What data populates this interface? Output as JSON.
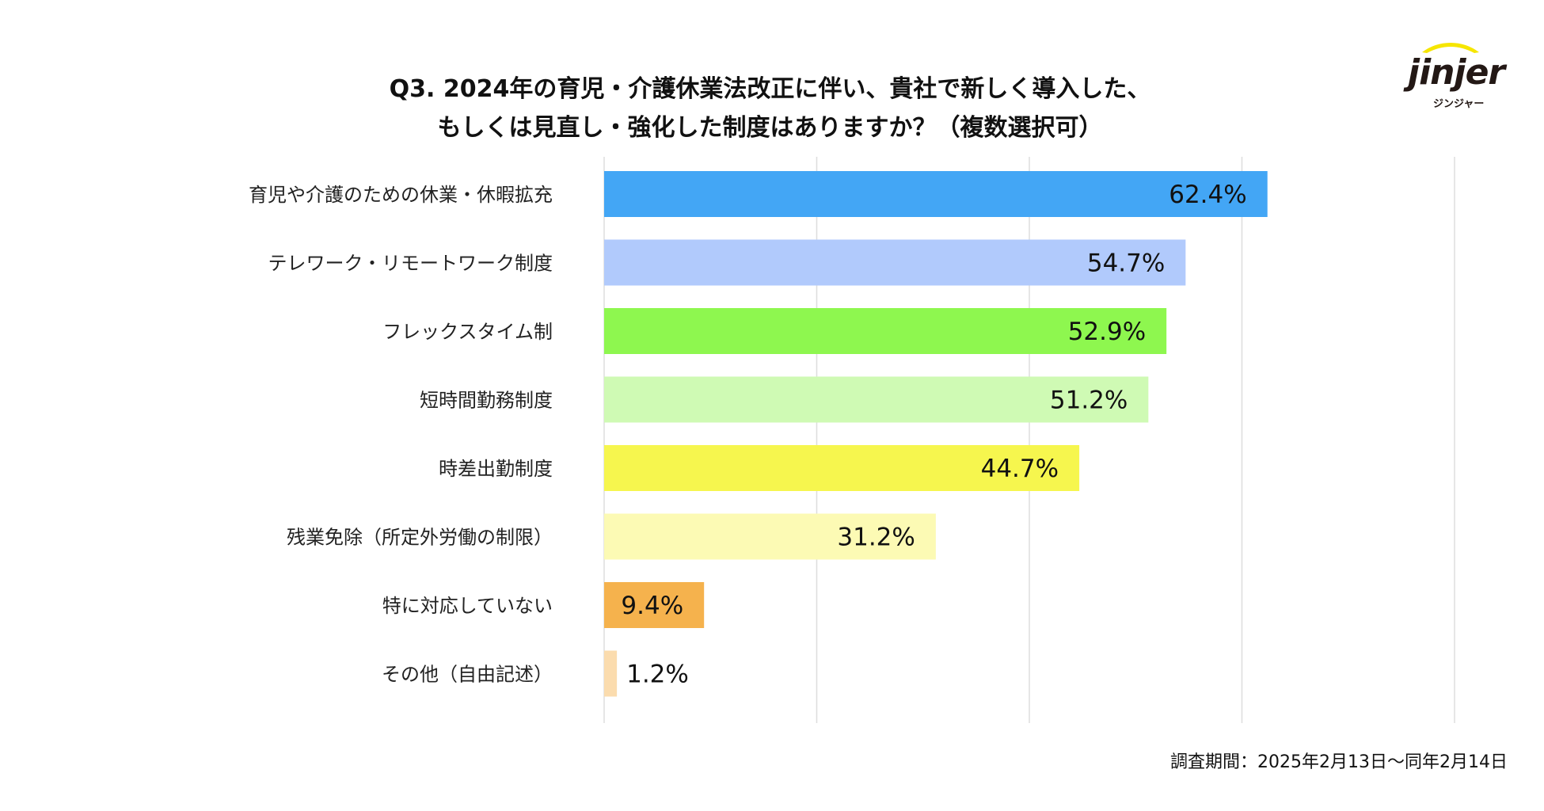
{
  "title_lines": [
    "Q3. 2024年の育児・介護休業法改正に伴い、貴社で新しく導入した、",
    "もしくは見直し・強化した制度はありますか？（複数選択可）"
  ],
  "logo": {
    "word": "jinjer",
    "sub": "ジンジャー"
  },
  "footnote": "調査期間：2025年2月13日〜同年2月14日",
  "chart_data": {
    "type": "bar",
    "orientation": "horizontal",
    "title": "Q3. 2024年の育児・介護休業法改正に伴い、貴社で新しく導入した、もしくは見直し・強化した制度はありますか？（複数選択可）",
    "categories": [
      "育児や介護のための休業・休暇拡充",
      "テレワーク・リモートワーク制度",
      "フレックスタイム制",
      "短時間勤務制度",
      "時差出勤制度",
      "残業免除（所定外労働の制限）",
      "特に対応していない",
      "その他（自由記述）"
    ],
    "values": [
      62.4,
      54.7,
      52.9,
      51.2,
      44.7,
      31.2,
      9.4,
      1.2
    ],
    "labels": [
      "62.4%",
      "54.7%",
      "52.9%",
      "51.2%",
      "44.7%",
      "31.2%",
      "9.4%",
      "1.2%"
    ],
    "colors": [
      "#43a6f5",
      "#b1cafc",
      "#8ef74f",
      "#cffab4",
      "#f6f64e",
      "#fcfab4",
      "#f5b24d",
      "#fbdcae"
    ],
    "xlim": [
      0,
      80
    ],
    "grid_step": 20,
    "grid": true,
    "xlabel": "",
    "ylabel": ""
  }
}
